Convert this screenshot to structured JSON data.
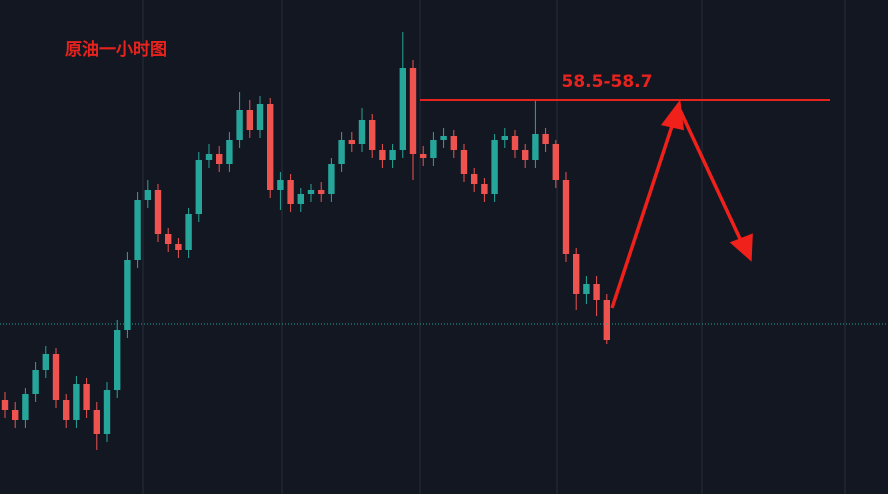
{
  "chart_data": {
    "type": "candlestick",
    "title": "原油一小时图",
    "up_color": "#26a69a",
    "down_color": "#ef5350",
    "ylim": [
      56.63,
      59.1
    ],
    "open": [
      57.1,
      57.05,
      57.0,
      57.13,
      57.25,
      57.33,
      57.1,
      57.0,
      57.18,
      57.05,
      56.93,
      57.15,
      57.45,
      57.8,
      58.1,
      58.15,
      57.93,
      57.88,
      57.85,
      58.03,
      58.3,
      58.33,
      58.28,
      58.4,
      58.55,
      58.45,
      58.58,
      58.15,
      58.2,
      58.08,
      58.13,
      58.15,
      58.13,
      58.28,
      58.4,
      58.38,
      58.5,
      58.35,
      58.3,
      58.35,
      58.76,
      58.33,
      58.31,
      58.4,
      58.42,
      58.35,
      58.23,
      58.18,
      58.13,
      58.4,
      58.42,
      58.35,
      58.3,
      58.43,
      58.38,
      58.2,
      57.83,
      57.63,
      57.68,
      57.6
    ],
    "high": [
      57.14,
      57.09,
      57.16,
      57.29,
      57.37,
      57.36,
      57.13,
      57.22,
      57.21,
      57.09,
      57.19,
      57.5,
      57.84,
      58.14,
      58.2,
      58.18,
      57.96,
      57.91,
      58.06,
      58.34,
      58.38,
      58.37,
      58.44,
      58.64,
      58.6,
      58.62,
      58.61,
      58.24,
      58.23,
      58.16,
      58.18,
      58.19,
      58.31,
      58.44,
      58.44,
      58.56,
      58.53,
      58.38,
      58.38,
      58.94,
      58.8,
      58.37,
      58.44,
      58.46,
      58.45,
      58.38,
      58.26,
      58.21,
      58.43,
      58.46,
      58.45,
      58.38,
      58.6,
      58.46,
      58.4,
      58.24,
      57.86,
      57.72,
      57.72,
      57.63
    ],
    "low": [
      57.01,
      56.96,
      56.96,
      57.09,
      57.21,
      57.06,
      56.96,
      56.96,
      57.01,
      56.85,
      56.89,
      57.11,
      57.41,
      57.76,
      58.06,
      57.89,
      57.84,
      57.81,
      57.81,
      57.99,
      58.26,
      58.24,
      58.24,
      58.36,
      58.41,
      58.41,
      58.11,
      58.05,
      58.04,
      58.04,
      58.09,
      58.09,
      58.09,
      58.24,
      58.34,
      58.34,
      58.31,
      58.26,
      58.26,
      58.31,
      58.2,
      58.27,
      58.27,
      58.36,
      58.31,
      58.19,
      58.14,
      58.09,
      58.09,
      58.36,
      58.31,
      58.26,
      58.26,
      58.34,
      58.16,
      57.79,
      57.55,
      57.58,
      57.52,
      57.38
    ],
    "close": [
      57.05,
      57.0,
      57.13,
      57.25,
      57.33,
      57.1,
      57.0,
      57.18,
      57.05,
      56.93,
      57.15,
      57.45,
      57.8,
      58.1,
      58.15,
      57.93,
      57.88,
      57.85,
      58.03,
      58.3,
      58.33,
      58.28,
      58.4,
      58.55,
      58.45,
      58.58,
      58.15,
      58.2,
      58.08,
      58.13,
      58.15,
      58.13,
      58.28,
      58.4,
      58.38,
      58.5,
      58.35,
      58.3,
      58.35,
      58.76,
      58.33,
      58.31,
      58.4,
      58.42,
      58.35,
      58.23,
      58.18,
      58.13,
      58.4,
      58.42,
      58.35,
      58.3,
      58.43,
      58.38,
      58.2,
      57.83,
      57.63,
      57.68,
      57.6,
      57.4
    ],
    "last_price": 57.48,
    "annotation": {
      "text": "58.5-58.7",
      "value": 58.6,
      "color": "#e8231d"
    }
  }
}
